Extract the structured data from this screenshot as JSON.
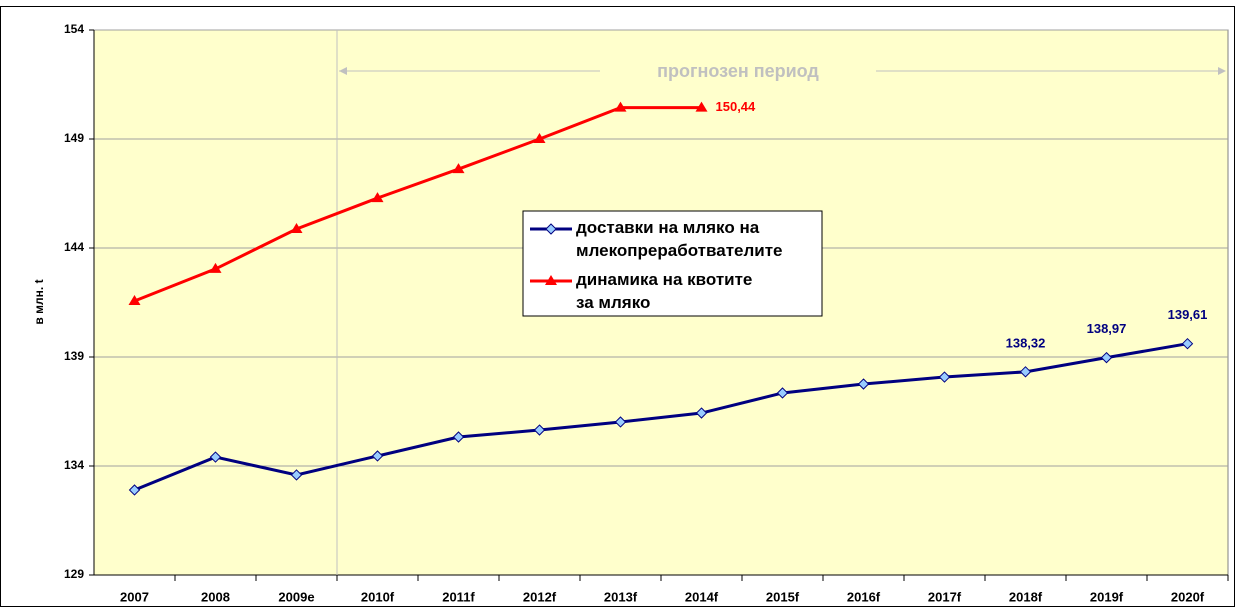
{
  "chart_data": {
    "type": "line",
    "y_label": "в млн. t",
    "annotation": "прогнозен период",
    "categories": [
      "2007",
      "2008",
      "2009e",
      "2010f",
      "2011f",
      "2012f",
      "2013f",
      "2014f",
      "2015f",
      "2016f",
      "2017f",
      "2018f",
      "2019f",
      "2020f"
    ],
    "series": [
      {
        "name": "доставки на мляко на млекопреработвателите",
        "color": "#000080",
        "marker": "diamond",
        "values": [
          132.9,
          134.41,
          133.59,
          134.46,
          135.33,
          135.65,
          136.02,
          136.43,
          137.35,
          137.76,
          138.08,
          138.32,
          138.97,
          139.61
        ],
        "value_labels": [
          null,
          null,
          null,
          null,
          null,
          null,
          null,
          null,
          null,
          null,
          null,
          "138,32",
          "138,97",
          "139,61"
        ]
      },
      {
        "name": "динамика на квотите за мляко",
        "color": "#ff0000",
        "marker": "triangle",
        "values": [
          141.57,
          143.04,
          144.87,
          146.29,
          147.62,
          149.0,
          150.44,
          150.44,
          null,
          null,
          null,
          null,
          null,
          null
        ],
        "value_labels": [
          null,
          null,
          null,
          null,
          null,
          null,
          null,
          "150,44",
          null,
          null,
          null,
          null,
          null,
          null
        ]
      }
    ],
    "ylim": [
      129,
      154
    ],
    "yticks": [
      129,
      134,
      139,
      144,
      149,
      154
    ],
    "grid": true
  }
}
